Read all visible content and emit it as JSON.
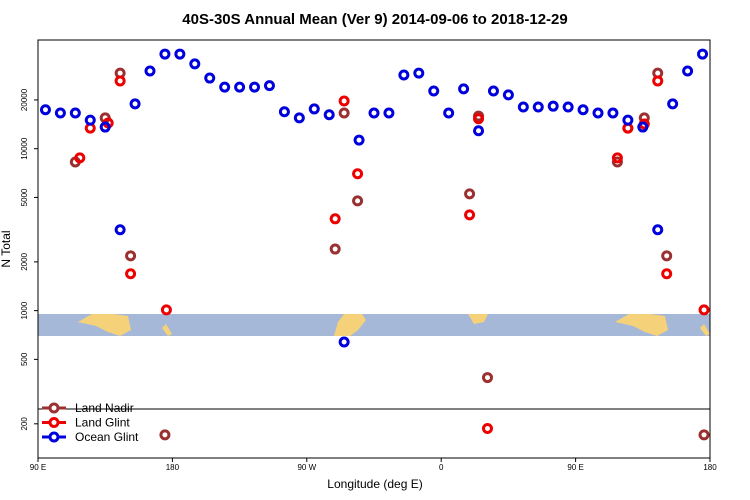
{
  "chart_data": {
    "type": "scatter",
    "title": "40S-30S Annual Mean (Ver 9)   2014-09-06 to 2018-12-29",
    "x_label": "Longitude (deg E)",
    "y_label": "N Total",
    "log_y": true,
    "legend": "bottom-left",
    "xlim": [
      90,
      540
    ],
    "ylim": [
      123,
      46900
    ],
    "xticks": [
      {
        "value": 90,
        "label": "90 E"
      },
      180,
      {
        "value": 270,
        "label": "90 W"
      },
      {
        "value": 360,
        "label": "0"
      },
      {
        "value": 450,
        "label": "90 E"
      },
      {
        "value": 540,
        "label": "180"
      }
    ],
    "yticks": [
      200,
      500,
      1000,
      2000,
      5000,
      10000,
      20000
    ],
    "series": [
      {
        "name": "Land Nadir",
        "color": "#9b3030",
        "x": [
          115,
          135,
          145,
          152,
          175,
          289,
          295,
          304,
          379,
          385,
          391,
          478,
          485,
          496,
          505,
          511,
          536
        ],
        "values": [
          8280,
          15500,
          29300,
          2180,
          171,
          2400,
          16600,
          4760,
          5260,
          15900,
          386,
          8280,
          13400,
          15500,
          29300,
          2180,
          171
        ]
      },
      {
        "name": "Land Glint",
        "color": "#ee0000",
        "x": [
          118,
          125,
          137,
          145,
          152,
          176,
          289,
          295,
          304,
          379,
          385,
          391,
          478,
          485,
          496,
          505,
          511,
          536
        ],
        "values": [
          8770,
          13400,
          14400,
          26200,
          1690,
          1010,
          3690,
          19700,
          7000,
          3900,
          15300,
          187,
          8770,
          13400,
          14200,
          26200,
          1690,
          1010
        ]
      },
      {
        "name": "Ocean Glint",
        "color": "#0000dd",
        "x": [
          95,
          105,
          115,
          125,
          135,
          145,
          155,
          165,
          175,
          185,
          195,
          205,
          215,
          225,
          235,
          245,
          255,
          265,
          275,
          285,
          295,
          305,
          315,
          325,
          335,
          345,
          355,
          365,
          375,
          385,
          395,
          405,
          415,
          425,
          435,
          445,
          455,
          465,
          475,
          485,
          495,
          505,
          515,
          525,
          535
        ],
        "values": [
          17400,
          16600,
          16600,
          15000,
          13600,
          3160,
          18900,
          30200,
          38400,
          38400,
          33400,
          27300,
          24000,
          24000,
          24000,
          24500,
          16900,
          15500,
          17600,
          16200,
          640,
          11300,
          16600,
          16600,
          28500,
          29300,
          22700,
          16600,
          23400,
          12900,
          22700,
          21500,
          18100,
          18100,
          18300,
          18100,
          17400,
          16600,
          16600,
          15000,
          13600,
          3160,
          18900,
          30200,
          38400
        ]
      }
    ]
  }
}
